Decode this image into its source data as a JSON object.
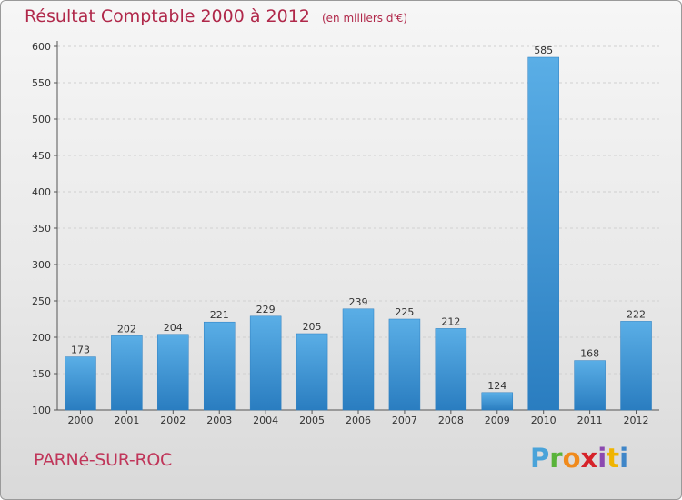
{
  "header": {
    "title": "Résultat Comptable 2000 à 2012",
    "unit": "(en milliers d'€)"
  },
  "footer": {
    "town": "PARNé-SUR-ROC",
    "logo": "Proxiti"
  },
  "colors": {
    "title": "#b0284a",
    "bar_light": "#5aaee6",
    "bar_dark": "#2a7dc0"
  },
  "chart_data": {
    "type": "bar",
    "title": "Résultat Comptable 2000 à 2012",
    "subtitle": "(en milliers d'€)",
    "xlabel": "",
    "ylabel": "",
    "categories": [
      "2000",
      "2001",
      "2002",
      "2003",
      "2004",
      "2005",
      "2006",
      "2007",
      "2008",
      "2009",
      "2010",
      "2011",
      "2012"
    ],
    "values": [
      173,
      202,
      204,
      221,
      229,
      205,
      239,
      225,
      212,
      124,
      585,
      168,
      222
    ],
    "ylim": [
      100,
      600
    ],
    "yticks": [
      100,
      150,
      200,
      250,
      300,
      350,
      400,
      450,
      500,
      550,
      600
    ],
    "grid": true
  }
}
